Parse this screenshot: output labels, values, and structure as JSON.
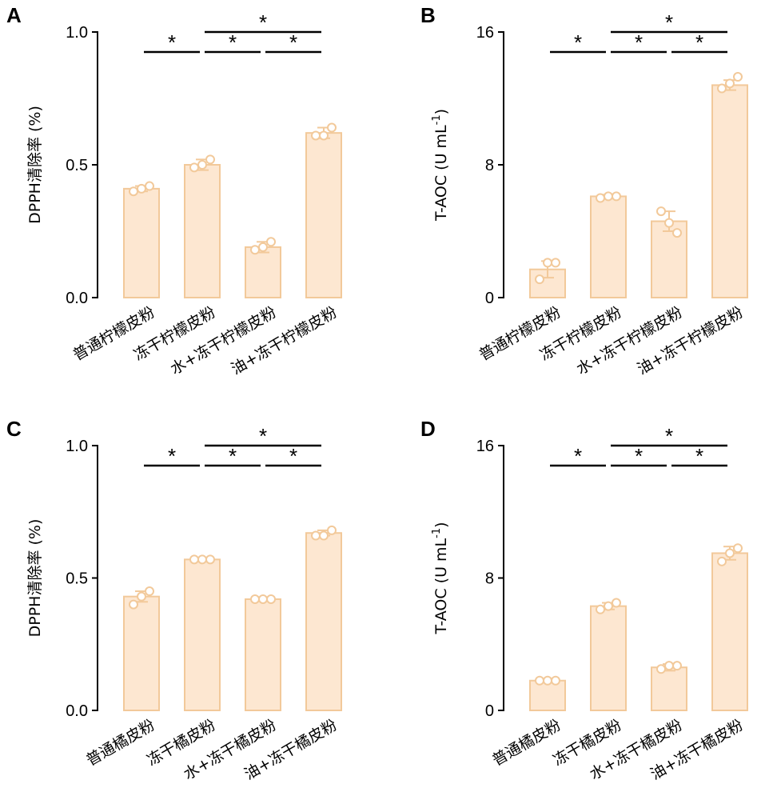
{
  "colors": {
    "bar_fill": "#fde7d1",
    "bar_stroke": "#f2c99a",
    "point_fill": "#ffffff",
    "point_stroke": "#f2c99a",
    "axis": "#000000"
  },
  "chart_data": [
    {
      "panel": "A",
      "type": "bar",
      "ylabel": "DPPH清除率 (%)",
      "ylim": [
        0,
        1.0
      ],
      "yticks": [
        0.0,
        0.5,
        1.0
      ],
      "ytick_labels": [
        "0.0",
        "0.5",
        "1.0"
      ],
      "categories": [
        "普通柠檬皮粉",
        "冻干柠檬皮粉",
        "水+冻干柠檬皮粉",
        "油+冻干柠檬皮粉"
      ],
      "values": [
        0.41,
        0.5,
        0.19,
        0.62
      ],
      "errors": [
        0.01,
        0.02,
        0.02,
        0.02
      ],
      "points": [
        [
          0.4,
          0.41,
          0.42
        ],
        [
          0.49,
          0.5,
          0.52
        ],
        [
          0.18,
          0.19,
          0.21
        ],
        [
          0.61,
          0.61,
          0.64
        ]
      ],
      "significance": [
        {
          "from": 1,
          "to": 2,
          "level": 1,
          "label": "*"
        },
        {
          "from": 2,
          "to": 3,
          "level": 1,
          "label": "*"
        },
        {
          "from": 3,
          "to": 4,
          "level": 1,
          "label": "*"
        },
        {
          "from": 2,
          "to": 4,
          "level": 2,
          "label": "*"
        }
      ]
    },
    {
      "panel": "B",
      "type": "bar",
      "ylabel": "T-AOC (U mL",
      "ylabel_sup": "-1",
      "ylabel_end": ")",
      "ylim": [
        0,
        16
      ],
      "yticks": [
        0,
        8,
        16
      ],
      "ytick_labels": [
        "0",
        "8",
        "16"
      ],
      "categories": [
        "普通柠檬皮粉",
        "冻干柠檬皮粉",
        "水+冻干柠檬皮粉",
        "油+冻干柠檬皮粉"
      ],
      "values": [
        1.7,
        6.1,
        4.6,
        12.8
      ],
      "errors": [
        0.5,
        0.1,
        0.6,
        0.3
      ],
      "points": [
        [
          1.1,
          2.1,
          2.1
        ],
        [
          6.0,
          6.1,
          6.1
        ],
        [
          5.2,
          4.5,
          3.9
        ],
        [
          12.6,
          12.9,
          13.3
        ]
      ],
      "significance": [
        {
          "from": 1,
          "to": 2,
          "level": 1,
          "label": "*"
        },
        {
          "from": 2,
          "to": 3,
          "level": 1,
          "label": "*"
        },
        {
          "from": 3,
          "to": 4,
          "level": 1,
          "label": "*"
        },
        {
          "from": 2,
          "to": 4,
          "level": 2,
          "label": "*"
        }
      ]
    },
    {
      "panel": "C",
      "type": "bar",
      "ylabel": "DPPH清除率 (%)",
      "ylim": [
        0,
        1.0
      ],
      "yticks": [
        0.0,
        0.5,
        1.0
      ],
      "ytick_labels": [
        "0.0",
        "0.5",
        "1.0"
      ],
      "categories": [
        "普通橘皮粉",
        "冻干橘皮粉",
        "水+冻干橘皮粉",
        "油+冻干橘皮粉"
      ],
      "values": [
        0.43,
        0.57,
        0.42,
        0.67
      ],
      "errors": [
        0.02,
        0.005,
        0.005,
        0.01
      ],
      "points": [
        [
          0.4,
          0.43,
          0.45
        ],
        [
          0.57,
          0.57,
          0.57
        ],
        [
          0.42,
          0.42,
          0.42
        ],
        [
          0.66,
          0.66,
          0.68
        ]
      ],
      "significance": [
        {
          "from": 1,
          "to": 2,
          "level": 1,
          "label": "*"
        },
        {
          "from": 2,
          "to": 3,
          "level": 1,
          "label": "*"
        },
        {
          "from": 3,
          "to": 4,
          "level": 1,
          "label": "*"
        },
        {
          "from": 2,
          "to": 4,
          "level": 2,
          "label": "*"
        }
      ]
    },
    {
      "panel": "D",
      "type": "bar",
      "ylabel": "T-AOC (U mL",
      "ylabel_sup": "-1",
      "ylabel_end": ")",
      "ylim": [
        0,
        16
      ],
      "yticks": [
        0,
        8,
        16
      ],
      "ytick_labels": [
        "0",
        "8",
        "16"
      ],
      "categories": [
        "普通橘皮粉",
        "冻干橘皮粉",
        "水+冻干橘皮粉",
        "油+冻干橘皮粉"
      ],
      "values": [
        1.8,
        6.3,
        2.6,
        9.5
      ],
      "errors": [
        0.05,
        0.2,
        0.2,
        0.4
      ],
      "points": [
        [
          1.8,
          1.8,
          1.8
        ],
        [
          6.1,
          6.3,
          6.5
        ],
        [
          2.5,
          2.7,
          2.7
        ],
        [
          9.0,
          9.5,
          9.8
        ]
      ],
      "significance": [
        {
          "from": 1,
          "to": 2,
          "level": 1,
          "label": "*"
        },
        {
          "from": 2,
          "to": 3,
          "level": 1,
          "label": "*"
        },
        {
          "from": 3,
          "to": 4,
          "level": 1,
          "label": "*"
        },
        {
          "from": 2,
          "to": 4,
          "level": 2,
          "label": "*"
        }
      ]
    }
  ]
}
